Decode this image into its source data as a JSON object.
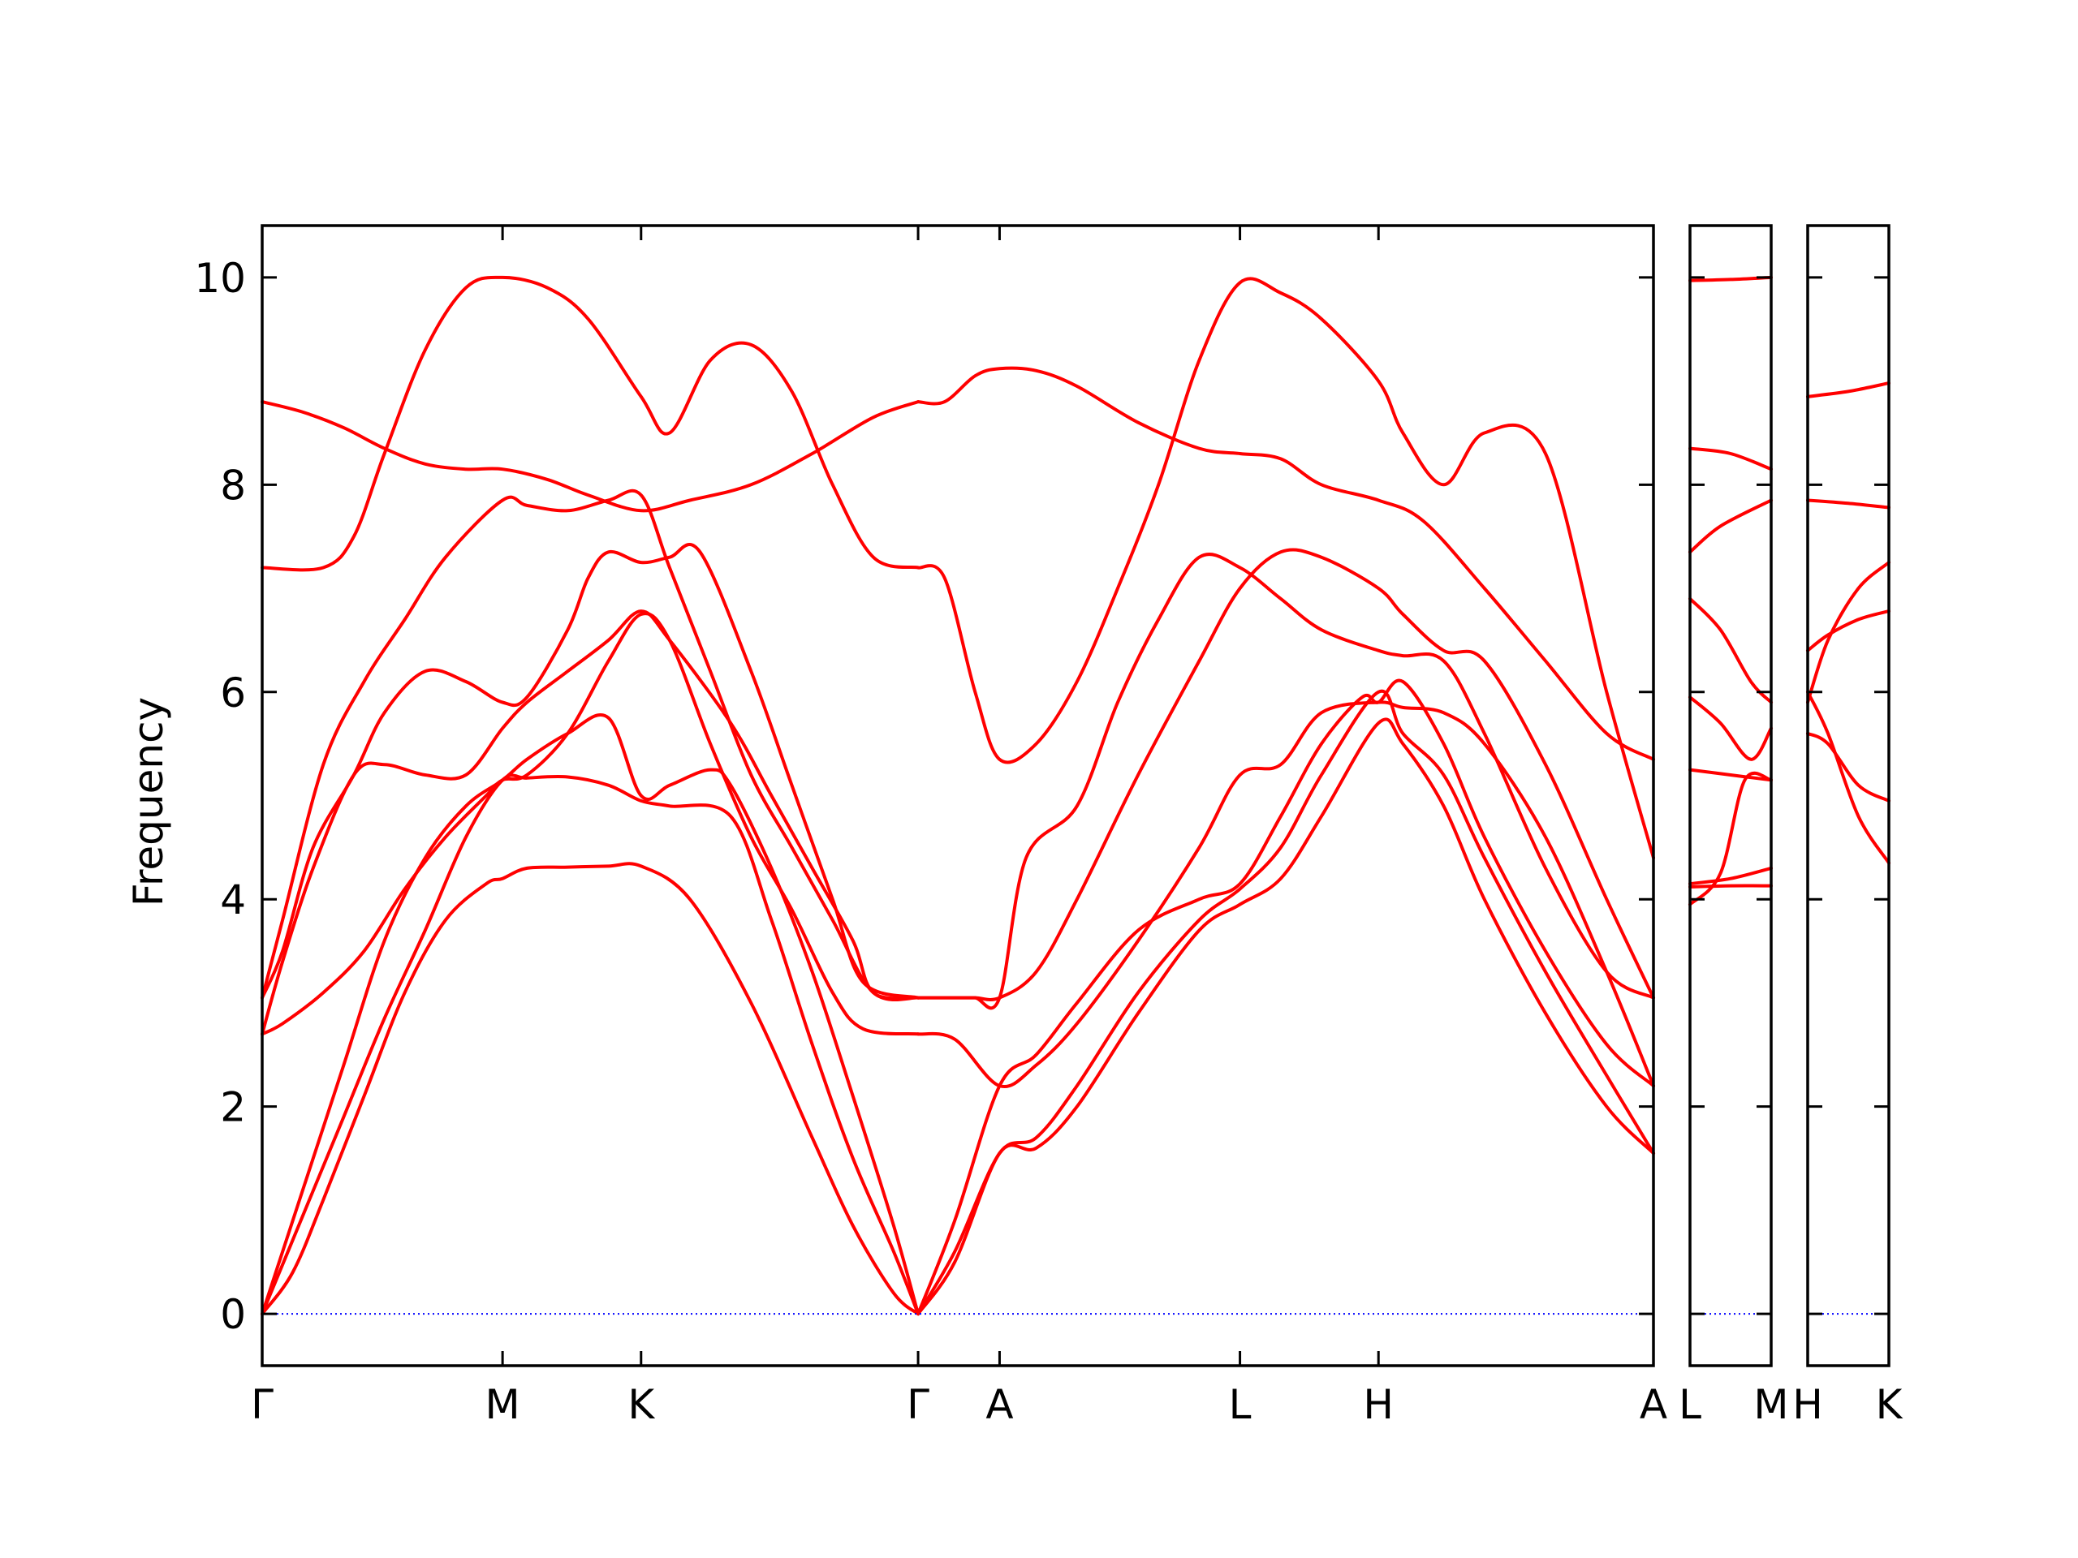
{
  "chart_data": {
    "type": "line",
    "title": "",
    "xlabel": "",
    "ylabel": "Frequency",
    "ylim": [
      -0.5,
      10.5
    ],
    "yticks": [
      0,
      2,
      4,
      6,
      8,
      10
    ],
    "grid": false,
    "line_color": "#ff0000",
    "zero_line_color": "#0000ff",
    "panels": [
      {
        "xlim": [
          0,
          6.83
        ],
        "ticks": [
          "Γ",
          "M",
          "K",
          "Γ",
          "A",
          "L",
          "H",
          "A"
        ],
        "tick_x": [
          0,
          1.18,
          1.86,
          3.22,
          3.62,
          4.8,
          5.48,
          6.83
        ]
      },
      {
        "xlim": [
          0,
          0.4
        ],
        "ticks": [
          "L",
          "M"
        ],
        "tick_x": [
          0,
          0.4
        ]
      },
      {
        "xlim": [
          0,
          0.4
        ],
        "ticks": [
          "H",
          "K"
        ],
        "tick_x": [
          0,
          0.4
        ]
      }
    ],
    "series": [
      {
        "panel": 0,
        "x": [
          0,
          0.15,
          0.3,
          0.5,
          0.7,
          0.9,
          1.1,
          1.18,
          1.3,
          1.5,
          1.7,
          1.86,
          2.1,
          2.4,
          2.7,
          2.9,
          3.1,
          3.22
        ],
        "values": [
          0,
          0.4,
          1.1,
          2.1,
          3.1,
          3.8,
          4.15,
          4.2,
          4.3,
          4.31,
          4.32,
          4.32,
          4.0,
          3.0,
          1.7,
          0.85,
          0.2,
          0
        ]
      },
      {
        "panel": 0,
        "x": [
          0,
          0.2,
          0.4,
          0.6,
          0.8,
          1.0,
          1.18,
          1.3,
          1.5,
          1.7,
          1.86,
          2.0,
          2.3,
          2.5,
          2.7,
          2.9,
          3.1,
          3.22
        ],
        "values": [
          0,
          0.95,
          1.9,
          2.85,
          3.7,
          4.6,
          5.15,
          5.17,
          5.18,
          5.1,
          4.95,
          4.9,
          4.8,
          3.8,
          2.6,
          1.5,
          0.6,
          0
        ]
      },
      {
        "panel": 0,
        "x": [
          0,
          0.2,
          0.4,
          0.6,
          0.8,
          1.0,
          1.18,
          1.3,
          1.5,
          1.7,
          1.86,
          2.0,
          2.2,
          2.3,
          2.5,
          2.7,
          2.9,
          3.1,
          3.22
        ],
        "values": [
          0,
          1.2,
          2.4,
          3.6,
          4.4,
          4.9,
          5.15,
          5.35,
          5.6,
          5.75,
          5.0,
          5.1,
          5.25,
          5.1,
          4.3,
          3.3,
          2.1,
          0.85,
          0
        ]
      },
      {
        "panel": 0,
        "x": [
          0,
          0.1,
          0.3,
          0.5,
          0.7,
          0.9,
          1.1,
          1.18,
          1.3,
          1.5,
          1.7,
          1.86,
          2.0,
          2.2,
          2.4,
          2.6,
          2.8,
          2.95,
          3.22
        ],
        "values": [
          2.7,
          2.8,
          3.1,
          3.5,
          4.1,
          4.6,
          5.0,
          5.15,
          5.2,
          5.6,
          6.3,
          6.75,
          6.5,
          5.5,
          4.6,
          3.9,
          3.1,
          2.75,
          2.7
        ]
      },
      {
        "panel": 0,
        "x": [
          0,
          0.1,
          0.25,
          0.45,
          0.6,
          0.8,
          1.0,
          1.18,
          1.3,
          1.5,
          1.7,
          1.86,
          2.0,
          2.3,
          2.5,
          2.7,
          2.9,
          3.0,
          3.22
        ],
        "values": [
          2.7,
          3.4,
          4.3,
          5.2,
          5.3,
          5.2,
          5.2,
          5.65,
          5.9,
          6.2,
          6.5,
          6.78,
          6.5,
          5.7,
          5.0,
          4.3,
          3.6,
          3.1,
          3.05
        ]
      },
      {
        "panel": 0,
        "x": [
          0,
          0.1,
          0.25,
          0.45,
          0.6,
          0.8,
          1.0,
          1.18,
          1.3,
          1.5,
          1.6,
          1.7,
          1.86,
          2.0,
          2.15,
          2.4,
          2.6,
          2.8,
          2.95,
          3.22
        ],
        "values": [
          3.05,
          3.5,
          4.5,
          5.2,
          5.8,
          6.2,
          6.1,
          5.9,
          5.95,
          6.6,
          7.1,
          7.35,
          7.25,
          7.3,
          7.35,
          6.2,
          5.1,
          4.0,
          3.2,
          3.05
        ]
      },
      {
        "panel": 0,
        "x": [
          0,
          0.1,
          0.3,
          0.5,
          0.7,
          0.9,
          1.18,
          1.3,
          1.5,
          1.7,
          1.86,
          2.0,
          2.2,
          2.4,
          2.6,
          2.8,
          3.0,
          3.22
        ],
        "values": [
          3.05,
          3.8,
          5.3,
          6.1,
          6.7,
          7.3,
          7.85,
          7.8,
          7.75,
          7.85,
          7.9,
          7.2,
          6.2,
          5.2,
          4.5,
          3.8,
          3.1,
          3.05
        ]
      },
      {
        "panel": 0,
        "x": [
          0,
          0.2,
          0.4,
          0.6,
          0.8,
          1.0,
          1.18,
          1.4,
          1.6,
          1.86,
          2.1,
          2.4,
          2.7,
          3.0,
          3.22
        ],
        "values": [
          8.8,
          8.7,
          8.55,
          8.35,
          8.2,
          8.15,
          8.15,
          8.05,
          7.9,
          7.75,
          7.85,
          8.0,
          8.3,
          8.65,
          8.8
        ]
      },
      {
        "panel": 0,
        "x": [
          0,
          0.3,
          0.45,
          0.6,
          0.8,
          1.0,
          1.18,
          1.4,
          1.6,
          1.86,
          2.0,
          2.2,
          2.4,
          2.6,
          2.8,
          3.0,
          3.22
        ],
        "values": [
          7.2,
          7.2,
          7.5,
          8.3,
          9.3,
          9.9,
          10.0,
          9.9,
          9.6,
          8.85,
          8.5,
          9.2,
          9.35,
          8.9,
          8.0,
          7.3,
          7.2
        ]
      },
      {
        "panel": 0,
        "x": [
          3.22,
          3.35,
          3.5,
          3.62,
          3.8,
          4.0,
          4.3,
          4.6,
          4.8,
          5.0,
          5.2,
          5.48,
          5.7,
          6.0,
          6.3,
          6.6,
          6.83
        ],
        "values": [
          8.8,
          8.8,
          9.05,
          9.12,
          9.1,
          8.95,
          8.6,
          8.35,
          8.3,
          8.25,
          8.0,
          7.85,
          7.65,
          7.0,
          6.3,
          5.6,
          5.35
        ]
      },
      {
        "panel": 0,
        "x": [
          3.22,
          3.35,
          3.5,
          3.62,
          3.8,
          4.0,
          4.2,
          4.4,
          4.6,
          4.8,
          5.0,
          5.2,
          5.48,
          5.6,
          5.8,
          6.0,
          6.3,
          6.6,
          6.83
        ],
        "values": [
          7.2,
          7.1,
          6.0,
          5.35,
          5.5,
          6.1,
          7.0,
          8.0,
          9.2,
          9.95,
          9.85,
          9.6,
          9.0,
          8.5,
          8.0,
          8.5,
          8.3,
          6.0,
          4.4
        ]
      },
      {
        "panel": 0,
        "x": [
          3.22,
          3.4,
          3.5,
          3.62,
          3.8,
          4.0,
          4.3,
          4.6,
          4.8,
          5.0,
          5.2,
          5.48,
          5.6,
          5.8,
          6.0,
          6.3,
          6.6,
          6.83
        ],
        "values": [
          3.05,
          3.05,
          3.05,
          3.05,
          3.3,
          4.0,
          5.2,
          6.3,
          7.0,
          7.35,
          7.3,
          7.0,
          6.75,
          6.4,
          6.3,
          5.3,
          4.0,
          3.05
        ]
      },
      {
        "panel": 0,
        "x": [
          3.22,
          3.4,
          3.5,
          3.62,
          3.75,
          4.0,
          4.2,
          4.4,
          4.6,
          4.8,
          5.0,
          5.2,
          5.48,
          5.6,
          5.8,
          6.0,
          6.3,
          6.6,
          6.83
        ],
        "values": [
          3.05,
          3.05,
          3.05,
          3.05,
          4.4,
          4.9,
          5.9,
          6.7,
          7.3,
          7.2,
          6.9,
          6.6,
          6.4,
          6.35,
          6.3,
          5.6,
          4.3,
          3.3,
          3.05
        ]
      },
      {
        "panel": 0,
        "x": [
          3.22,
          3.4,
          3.62,
          3.8,
          4.0,
          4.3,
          4.6,
          4.8,
          5.0,
          5.2,
          5.48,
          5.6,
          5.8,
          6.0,
          6.3,
          6.6,
          6.83
        ],
        "values": [
          2.7,
          2.65,
          2.2,
          2.4,
          2.8,
          3.6,
          4.5,
          5.2,
          5.3,
          5.8,
          5.9,
          5.85,
          5.8,
          5.5,
          4.6,
          3.3,
          2.2
        ]
      },
      {
        "panel": 0,
        "x": [
          3.22,
          3.4,
          3.62,
          3.8,
          4.0,
          4.3,
          4.6,
          4.8,
          5.0,
          5.2,
          5.4,
          5.48,
          5.6,
          5.8,
          6.0,
          6.3,
          6.6,
          6.83
        ],
        "values": [
          0,
          0.9,
          2.2,
          2.5,
          3.0,
          3.7,
          4.0,
          4.15,
          4.8,
          5.5,
          5.95,
          5.9,
          6.1,
          5.5,
          4.6,
          3.5,
          2.6,
          2.2
        ]
      },
      {
        "panel": 0,
        "x": [
          3.22,
          3.4,
          3.62,
          3.8,
          4.0,
          4.3,
          4.6,
          4.8,
          5.0,
          5.2,
          5.48,
          5.6,
          5.8,
          6.0,
          6.3,
          6.6,
          6.83
        ],
        "values": [
          0,
          0.6,
          1.55,
          1.7,
          2.2,
          3.1,
          3.8,
          4.1,
          4.5,
          5.2,
          6.0,
          5.6,
          5.2,
          4.4,
          3.3,
          2.3,
          1.55
        ]
      },
      {
        "panel": 0,
        "x": [
          3.22,
          3.4,
          3.62,
          3.8,
          4.0,
          4.3,
          4.6,
          4.8,
          5.0,
          5.2,
          5.48,
          5.6,
          5.8,
          6.0,
          6.3,
          6.6,
          6.83
        ],
        "values": [
          0,
          0.5,
          1.55,
          1.6,
          2.0,
          2.9,
          3.7,
          3.95,
          4.2,
          4.8,
          5.7,
          5.5,
          4.9,
          4.0,
          2.9,
          2.0,
          1.55
        ]
      },
      {
        "panel": 1,
        "x": [
          0,
          0.2,
          0.4
        ],
        "values": [
          9.97,
          9.98,
          10.0
        ]
      },
      {
        "panel": 1,
        "x": [
          0,
          0.2,
          0.4
        ],
        "values": [
          8.35,
          8.3,
          8.15
        ]
      },
      {
        "panel": 1,
        "x": [
          0,
          0.15,
          0.4
        ],
        "values": [
          7.35,
          7.6,
          7.85
        ]
      },
      {
        "panel": 1,
        "x": [
          0,
          0.15,
          0.3,
          0.4
        ],
        "values": [
          6.9,
          6.6,
          6.1,
          5.9
        ]
      },
      {
        "panel": 1,
        "x": [
          0,
          0.15,
          0.3,
          0.4
        ],
        "values": [
          5.95,
          5.7,
          5.35,
          5.65
        ]
      },
      {
        "panel": 1,
        "x": [
          0,
          0.2,
          0.4
        ],
        "values": [
          5.25,
          5.2,
          5.15
        ]
      },
      {
        "panel": 1,
        "x": [
          0,
          0.15,
          0.27,
          0.4
        ],
        "values": [
          3.95,
          4.25,
          5.15,
          5.15
        ]
      },
      {
        "panel": 1,
        "x": [
          0,
          0.2,
          0.4
        ],
        "values": [
          4.15,
          4.2,
          4.3
        ]
      },
      {
        "panel": 1,
        "x": [
          0,
          0.2,
          0.4
        ],
        "values": [
          4.12,
          4.13,
          4.13
        ]
      },
      {
        "panel": 2,
        "x": [
          0,
          0.2,
          0.4
        ],
        "values": [
          8.85,
          8.9,
          8.98
        ]
      },
      {
        "panel": 2,
        "x": [
          0,
          0.2,
          0.4
        ],
        "values": [
          7.85,
          7.82,
          7.78
        ]
      },
      {
        "panel": 2,
        "x": [
          0,
          0.1,
          0.25,
          0.4
        ],
        "values": [
          5.9,
          6.5,
          7.0,
          7.25
        ]
      },
      {
        "panel": 2,
        "x": [
          0,
          0.1,
          0.25,
          0.4
        ],
        "values": [
          6.4,
          6.55,
          6.7,
          6.78
        ]
      },
      {
        "panel": 2,
        "x": [
          0,
          0.1,
          0.25,
          0.4
        ],
        "values": [
          5.6,
          5.5,
          5.1,
          4.95
        ]
      },
      {
        "panel": 2,
        "x": [
          0,
          0.1,
          0.25,
          0.4
        ],
        "values": [
          6.0,
          5.6,
          4.8,
          4.35
        ]
      }
    ]
  }
}
